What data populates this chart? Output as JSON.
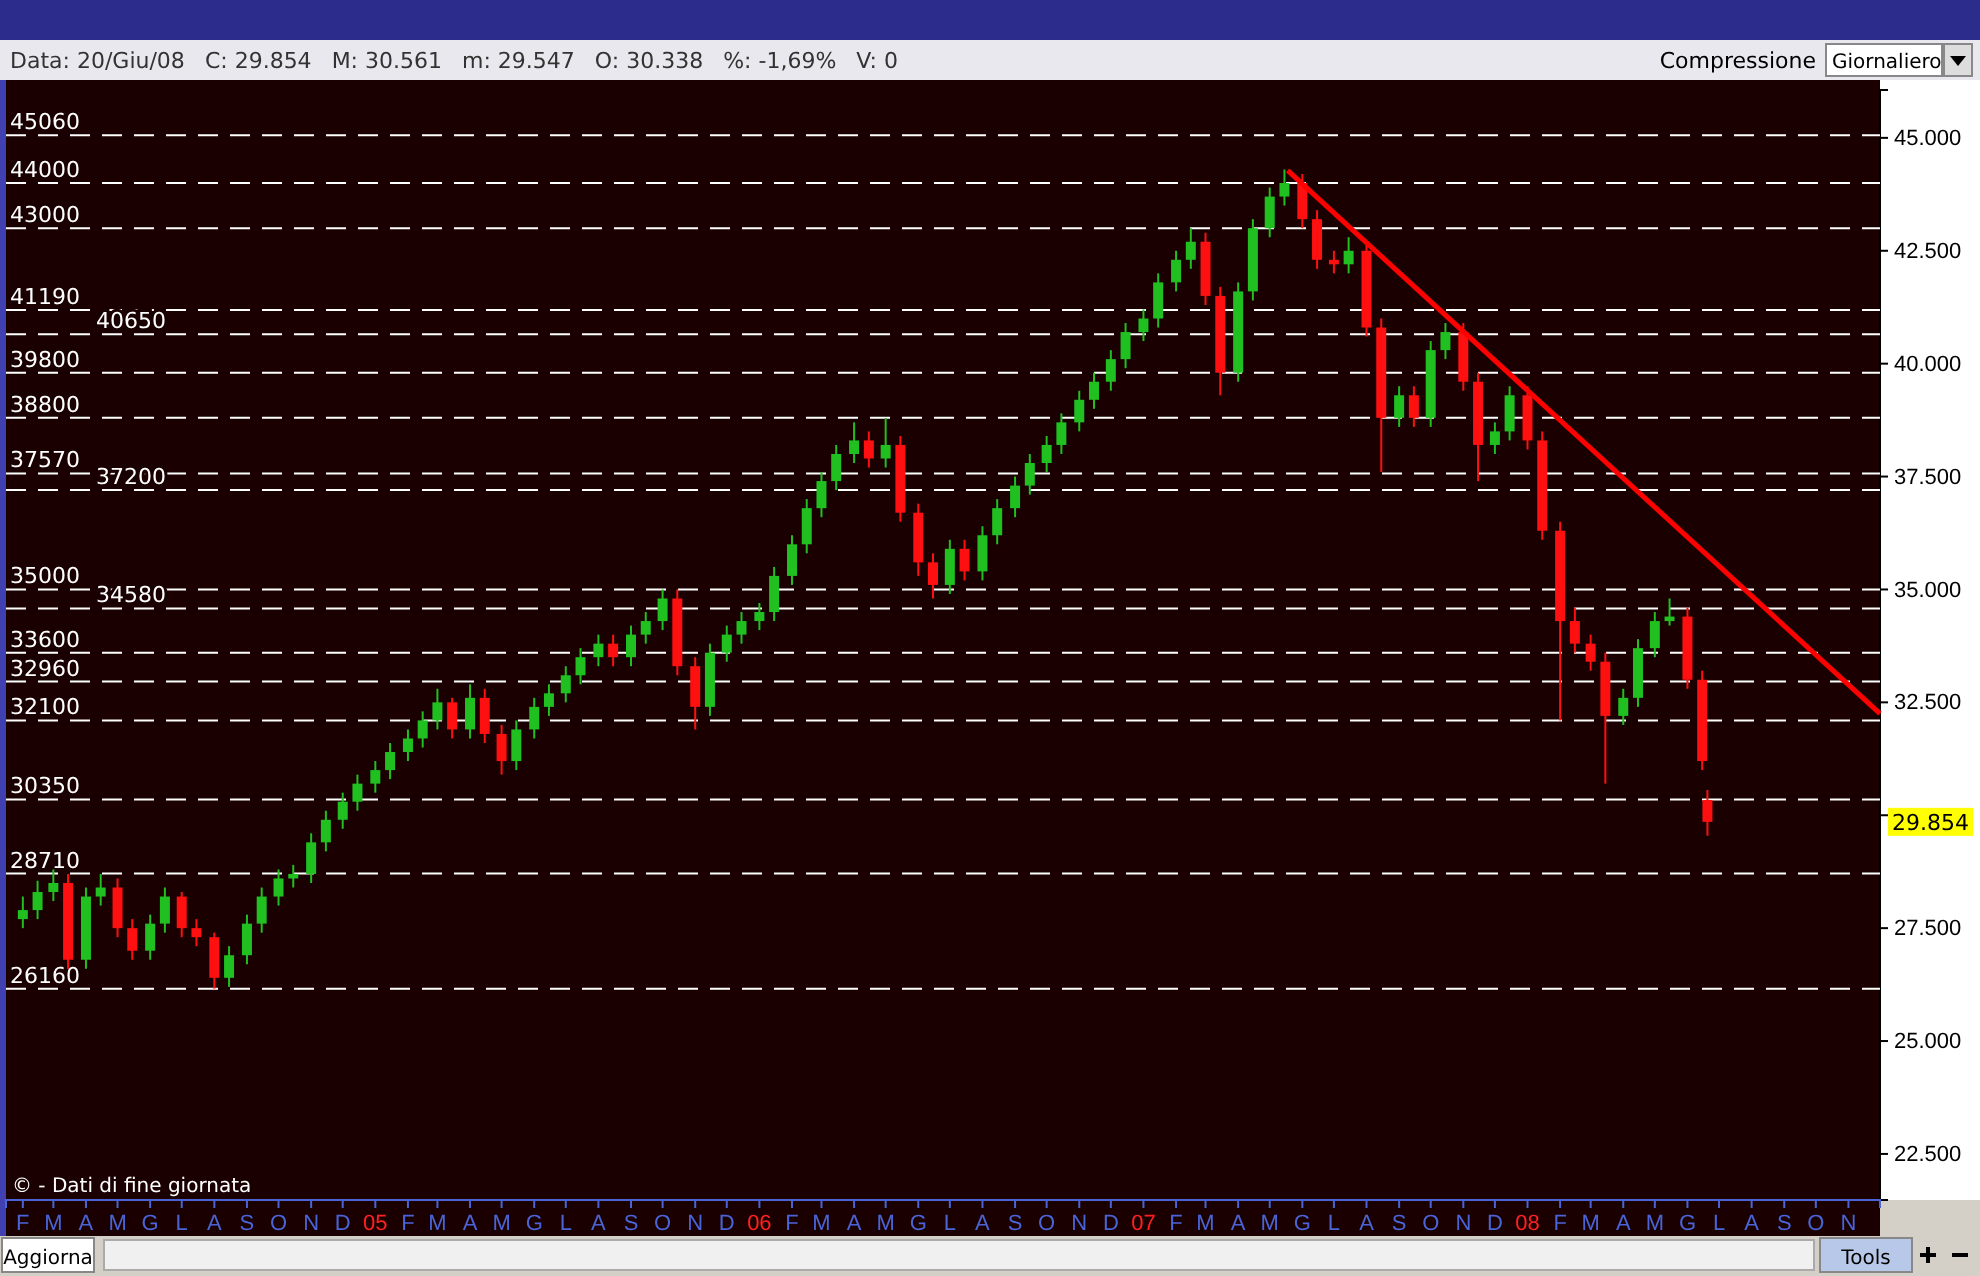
{
  "chart_data": {
    "type": "candlestick",
    "xlim": [
      "2004-01-16",
      "2008-12-01"
    ],
    "ylim": [
      21480,
      46060
    ],
    "yticks": [
      {
        "value": 22500,
        "label": "22.500"
      },
      {
        "value": 25000,
        "label": "25.000"
      },
      {
        "value": 27500,
        "label": "27.500"
      },
      {
        "value": 30000,
        "label": null
      },
      {
        "value": 32500,
        "label": "32.500"
      },
      {
        "value": 35000,
        "label": "35.000"
      },
      {
        "value": 37500,
        "label": "37.500"
      },
      {
        "value": 40000,
        "label": "40.000"
      },
      {
        "value": 42500,
        "label": "42.500"
      },
      {
        "value": 45000,
        "label": "45.000"
      }
    ],
    "xticks": [
      {
        "value": "2004-02-01",
        "label": "F"
      },
      {
        "value": "2004-03-01",
        "label": "M"
      },
      {
        "value": "2004-04-01",
        "label": "A"
      },
      {
        "value": "2004-05-01",
        "label": "M"
      },
      {
        "value": "2004-06-01",
        "label": "G"
      },
      {
        "value": "2004-07-01",
        "label": "L"
      },
      {
        "value": "2004-08-01",
        "label": "A"
      },
      {
        "value": "2004-09-01",
        "label": "S"
      },
      {
        "value": "2004-10-01",
        "label": "O"
      },
      {
        "value": "2004-11-01",
        "label": "N"
      },
      {
        "value": "2004-12-01",
        "label": "D"
      },
      {
        "value": "2005-01-01",
        "label": "05"
      },
      {
        "value": "2005-02-01",
        "label": "F"
      },
      {
        "value": "2005-03-01",
        "label": "M"
      },
      {
        "value": "2005-04-01",
        "label": "A"
      },
      {
        "value": "2005-05-01",
        "label": "M"
      },
      {
        "value": "2005-06-01",
        "label": "G"
      },
      {
        "value": "2005-07-01",
        "label": "L"
      },
      {
        "value": "2005-08-01",
        "label": "A"
      },
      {
        "value": "2005-09-01",
        "label": "S"
      },
      {
        "value": "2005-10-01",
        "label": "O"
      },
      {
        "value": "2005-11-01",
        "label": "N"
      },
      {
        "value": "2005-12-01",
        "label": "D"
      },
      {
        "value": "2006-01-01",
        "label": "06"
      },
      {
        "value": "2006-02-01",
        "label": "F"
      },
      {
        "value": "2006-03-01",
        "label": "M"
      },
      {
        "value": "2006-04-01",
        "label": "A"
      },
      {
        "value": "2006-05-01",
        "label": "M"
      },
      {
        "value": "2006-06-01",
        "label": "G"
      },
      {
        "value": "2006-07-01",
        "label": "L"
      },
      {
        "value": "2006-08-01",
        "label": "A"
      },
      {
        "value": "2006-09-01",
        "label": "S"
      },
      {
        "value": "2006-10-01",
        "label": "O"
      },
      {
        "value": "2006-11-01",
        "label": "N"
      },
      {
        "value": "2006-12-01",
        "label": "D"
      },
      {
        "value": "2007-01-01",
        "label": "07"
      },
      {
        "value": "2007-02-01",
        "label": "F"
      },
      {
        "value": "2007-03-01",
        "label": "M"
      },
      {
        "value": "2007-04-01",
        "label": "A"
      },
      {
        "value": "2007-05-01",
        "label": "M"
      },
      {
        "value": "2007-06-01",
        "label": "G"
      },
      {
        "value": "2007-07-01",
        "label": "L"
      },
      {
        "value": "2007-08-01",
        "label": "A"
      },
      {
        "value": "2007-09-01",
        "label": "S"
      },
      {
        "value": "2007-10-01",
        "label": "O"
      },
      {
        "value": "2007-11-01",
        "label": "N"
      },
      {
        "value": "2007-12-01",
        "label": "D"
      },
      {
        "value": "2008-01-01",
        "label": "08"
      },
      {
        "value": "2008-02-01",
        "label": "F"
      },
      {
        "value": "2008-03-01",
        "label": "M"
      },
      {
        "value": "2008-04-01",
        "label": "A"
      },
      {
        "value": "2008-05-01",
        "label": "M"
      },
      {
        "value": "2008-06-01",
        "label": "G"
      },
      {
        "value": "2008-07-01",
        "label": "L"
      },
      {
        "value": "2008-08-01",
        "label": "A"
      },
      {
        "value": "2008-09-01",
        "label": "S"
      },
      {
        "value": "2008-10-01",
        "label": "O"
      },
      {
        "value": "2008-11-01",
        "label": "N"
      }
    ],
    "ref_lines": [
      {
        "axis": "y",
        "value": 45060,
        "label": "45060",
        "color": "#ffffff",
        "line_style": "dashed"
      },
      {
        "axis": "y",
        "value": 44000,
        "label": "44000",
        "color": "#ffffff",
        "line_style": "dashed"
      },
      {
        "axis": "y",
        "value": 43000,
        "label": "43000",
        "color": "#ffffff",
        "line_style": "dashed"
      },
      {
        "axis": "y",
        "value": 41190,
        "label": "41190",
        "color": "#ffffff",
        "line_style": "dashed"
      },
      {
        "axis": "y",
        "value": 40650,
        "label": "40650",
        "color": "#ffffff",
        "line_style": "dashed"
      },
      {
        "axis": "y",
        "value": 39800,
        "label": "39800",
        "color": "#ffffff",
        "line_style": "dashed"
      },
      {
        "axis": "y",
        "value": 38800,
        "label": "38800",
        "color": "#ffffff",
        "line_style": "dashed"
      },
      {
        "axis": "y",
        "value": 37570,
        "label": "37570",
        "color": "#ffffff",
        "line_style": "dashed"
      },
      {
        "axis": "y",
        "value": 37200,
        "label": "37200",
        "color": "#ffffff",
        "line_style": "dashed"
      },
      {
        "axis": "y",
        "value": 35000,
        "label": "35000",
        "color": "#ffffff",
        "line_style": "dashed"
      },
      {
        "axis": "y",
        "value": 34580,
        "label": "34580",
        "color": "#ffffff",
        "line_style": "dashed"
      },
      {
        "axis": "y",
        "value": 33600,
        "label": "33600",
        "color": "#ffffff",
        "line_style": "dashed"
      },
      {
        "axis": "y",
        "value": 32960,
        "label": "32960",
        "color": "#ffffff",
        "line_style": "dashed"
      },
      {
        "axis": "y",
        "value": 32100,
        "label": "32100",
        "color": "#ffffff",
        "line_style": "dashed"
      },
      {
        "axis": "y",
        "value": 30350,
        "label": "30350",
        "color": "#ffffff",
        "line_style": "dashed"
      },
      {
        "axis": "y",
        "value": 28710,
        "label": "28710",
        "color": "#ffffff",
        "line_style": "dashed"
      },
      {
        "axis": "y",
        "value": 26160,
        "label": "26160",
        "color": "#ffffff",
        "line_style": "dashed"
      }
    ],
    "annotations": [
      "Data: 20/Giu/08",
      "C: 29.854",
      "M: 30.561",
      "m: 29.547",
      "O: 30.338",
      "%: -1,69%",
      "V: 0",
      "© - Dati di fine giornata",
      "Compressione",
      "Giornaliero",
      "Aggiorna",
      "Tools",
      "29.854"
    ],
    "series": [
      {
        "x": [
          "2004-02-01",
          "2004-02-15",
          "2004-03-01",
          "2004-03-15",
          "2004-04-01",
          "2004-04-15",
          "2004-05-01",
          "2004-05-15",
          "2004-06-01",
          "2004-06-15",
          "2004-07-01",
          "2004-07-15",
          "2004-08-01",
          "2004-08-15",
          "2004-09-01",
          "2004-09-15",
          "2004-10-01",
          "2004-10-15",
          "2004-11-01",
          "2004-11-15",
          "2004-12-01",
          "2004-12-15",
          "2005-01-01",
          "2005-01-15",
          "2005-02-01",
          "2005-02-15",
          "2005-03-01",
          "2005-03-15",
          "2005-04-01",
          "2005-04-15",
          "2005-05-01",
          "2005-05-15",
          "2005-06-01",
          "2005-06-15",
          "2005-07-01",
          "2005-07-15",
          "2005-08-01",
          "2005-08-15",
          "2005-09-01",
          "2005-09-15",
          "2005-10-01",
          "2005-10-15",
          "2005-11-01",
          "2005-11-15",
          "2005-12-01",
          "2005-12-15",
          "2006-01-01",
          "2006-01-15",
          "2006-02-01",
          "2006-02-15",
          "2006-03-01",
          "2006-03-15",
          "2006-04-01",
          "2006-04-15",
          "2006-05-01",
          "2006-05-15",
          "2006-06-01",
          "2006-06-15",
          "2006-07-01",
          "2006-07-15",
          "2006-08-01",
          "2006-08-15",
          "2006-09-01",
          "2006-09-15",
          "2006-10-01",
          "2006-10-15",
          "2006-11-01",
          "2006-11-15",
          "2006-12-01",
          "2006-12-15",
          "2007-01-01",
          "2007-01-15",
          "2007-02-01",
          "2007-02-15",
          "2007-03-01",
          "2007-03-15",
          "2007-04-01",
          "2007-04-15",
          "2007-05-01",
          "2007-05-15",
          "2007-06-01",
          "2007-06-15",
          "2007-07-01",
          "2007-07-15",
          "2007-08-01",
          "2007-08-15",
          "2007-09-01",
          "2007-09-15",
          "2007-10-01",
          "2007-10-15",
          "2007-11-01",
          "2007-11-15",
          "2007-12-01",
          "2007-12-15",
          "2008-01-01",
          "2008-01-15",
          "2008-02-01",
          "2008-02-15",
          "2008-03-01",
          "2008-03-15",
          "2008-04-01",
          "2008-04-15",
          "2008-05-01",
          "2008-05-15",
          "2008-06-01",
          "2008-06-15",
          "2008-06-20"
        ],
        "ohlc": [
          [
            27700,
            28200,
            27500,
            27900
          ],
          [
            27900,
            28550,
            27700,
            28300
          ],
          [
            28300,
            28800,
            28100,
            28500
          ],
          [
            28500,
            28700,
            26600,
            26800
          ],
          [
            26800,
            28400,
            26600,
            28200
          ],
          [
            28200,
            28700,
            28000,
            28400
          ],
          [
            28400,
            28600,
            27300,
            27500
          ],
          [
            27500,
            27700,
            26800,
            27000
          ],
          [
            27000,
            27800,
            26800,
            27600
          ],
          [
            27600,
            28400,
            27400,
            28200
          ],
          [
            28200,
            28300,
            27300,
            27500
          ],
          [
            27500,
            27700,
            27100,
            27300
          ],
          [
            27300,
            27400,
            26160,
            26400
          ],
          [
            26400,
            27100,
            26200,
            26900
          ],
          [
            26900,
            27800,
            26700,
            27600
          ],
          [
            27600,
            28400,
            27400,
            28200
          ],
          [
            28200,
            28800,
            28000,
            28600
          ],
          [
            28600,
            28900,
            28400,
            28700
          ],
          [
            28700,
            29600,
            28500,
            29400
          ],
          [
            29400,
            30100,
            29200,
            29900
          ],
          [
            29900,
            30500,
            29700,
            30300
          ],
          [
            30300,
            30900,
            30100,
            30700
          ],
          [
            30700,
            31200,
            30500,
            31000
          ],
          [
            31000,
            31600,
            30800,
            31400
          ],
          [
            31400,
            31900,
            31200,
            31700
          ],
          [
            31700,
            32300,
            31500,
            32100
          ],
          [
            32100,
            32800,
            31900,
            32500
          ],
          [
            32500,
            32600,
            31700,
            31900
          ],
          [
            31900,
            32900,
            31700,
            32600
          ],
          [
            32600,
            32800,
            31600,
            31800
          ],
          [
            31800,
            32000,
            30900,
            31200
          ],
          [
            31200,
            32100,
            31000,
            31900
          ],
          [
            31900,
            32600,
            31700,
            32400
          ],
          [
            32400,
            32900,
            32200,
            32700
          ],
          [
            32700,
            33300,
            32500,
            33100
          ],
          [
            33100,
            33700,
            32900,
            33500
          ],
          [
            33500,
            34000,
            33300,
            33800
          ],
          [
            33800,
            34000,
            33300,
            33500
          ],
          [
            33500,
            34200,
            33300,
            34000
          ],
          [
            34000,
            34500,
            33800,
            34300
          ],
          [
            34300,
            35000,
            34100,
            34800
          ],
          [
            34800,
            35000,
            33100,
            33300
          ],
          [
            33300,
            33500,
            31900,
            32400
          ],
          [
            32400,
            33800,
            32200,
            33600
          ],
          [
            33600,
            34200,
            33400,
            34000
          ],
          [
            34000,
            34500,
            33800,
            34300
          ],
          [
            34300,
            34700,
            34100,
            34500
          ],
          [
            34500,
            35500,
            34300,
            35300
          ],
          [
            35300,
            36200,
            35100,
            36000
          ],
          [
            36000,
            37000,
            35800,
            36800
          ],
          [
            36800,
            37600,
            36600,
            37400
          ],
          [
            37400,
            38200,
            37200,
            38000
          ],
          [
            38000,
            38700,
            37800,
            38300
          ],
          [
            38300,
            38500,
            37700,
            37900
          ],
          [
            37900,
            38800,
            37700,
            38200
          ],
          [
            38200,
            38400,
            36500,
            36700
          ],
          [
            36700,
            36900,
            35300,
            35600
          ],
          [
            35600,
            35800,
            34800,
            35100
          ],
          [
            35100,
            36100,
            34900,
            35900
          ],
          [
            35900,
            36100,
            35200,
            35400
          ],
          [
            35400,
            36400,
            35200,
            36200
          ],
          [
            36200,
            37000,
            36000,
            36800
          ],
          [
            36800,
            37500,
            36600,
            37300
          ],
          [
            37300,
            38000,
            37100,
            37800
          ],
          [
            37800,
            38400,
            37600,
            38200
          ],
          [
            38200,
            38900,
            38000,
            38700
          ],
          [
            38700,
            39400,
            38500,
            39200
          ],
          [
            39200,
            39800,
            39000,
            39600
          ],
          [
            39600,
            40300,
            39400,
            40100
          ],
          [
            40100,
            40900,
            39900,
            40700
          ],
          [
            40700,
            41200,
            40500,
            41000
          ],
          [
            41000,
            42000,
            40800,
            41800
          ],
          [
            41800,
            42500,
            41600,
            42300
          ],
          [
            42300,
            43000,
            42100,
            42700
          ],
          [
            42700,
            42900,
            41300,
            41500
          ],
          [
            41500,
            41700,
            39300,
            39800
          ],
          [
            39800,
            41800,
            39600,
            41600
          ],
          [
            41600,
            43200,
            41400,
            43000
          ],
          [
            43000,
            43900,
            42800,
            43700
          ],
          [
            43700,
            44300,
            43500,
            44000
          ],
          [
            44000,
            44200,
            43000,
            43200
          ],
          [
            43200,
            43400,
            42100,
            42300
          ],
          [
            42300,
            42500,
            42000,
            42200
          ],
          [
            42200,
            42800,
            42000,
            42500
          ],
          [
            42500,
            42700,
            40600,
            40800
          ],
          [
            40800,
            41000,
            37600,
            38800
          ],
          [
            38800,
            39500,
            38600,
            39300
          ],
          [
            39300,
            39500,
            38600,
            38800
          ],
          [
            38800,
            40500,
            38600,
            40300
          ],
          [
            40300,
            40900,
            40100,
            40700
          ],
          [
            40700,
            40900,
            39400,
            39600
          ],
          [
            39600,
            39800,
            37400,
            38200
          ],
          [
            38200,
            38700,
            38000,
            38500
          ],
          [
            38500,
            39500,
            38300,
            39300
          ],
          [
            39300,
            39500,
            38100,
            38300
          ],
          [
            38300,
            38500,
            36100,
            36300
          ],
          [
            36300,
            36500,
            32100,
            34300
          ],
          [
            34300,
            34600,
            33600,
            33800
          ],
          [
            33800,
            34000,
            33200,
            33400
          ],
          [
            33400,
            33600,
            30700,
            32200
          ],
          [
            32200,
            32800,
            32000,
            32600
          ],
          [
            32600,
            33900,
            32400,
            33700
          ],
          [
            33700,
            34500,
            33500,
            34300
          ],
          [
            34300,
            34800,
            34200,
            34400
          ],
          [
            34400,
            34600,
            32800,
            33000
          ],
          [
            33000,
            33200,
            31000,
            31200
          ],
          [
            30338,
            30561,
            29547,
            29854
          ]
        ]
      },
      {
        "type": "line",
        "x": [
          "2007-05-18",
          "2008-12-01"
        ],
        "values": [
          44280,
          32250
        ],
        "color": "#ff0000"
      }
    ]
  }
}
